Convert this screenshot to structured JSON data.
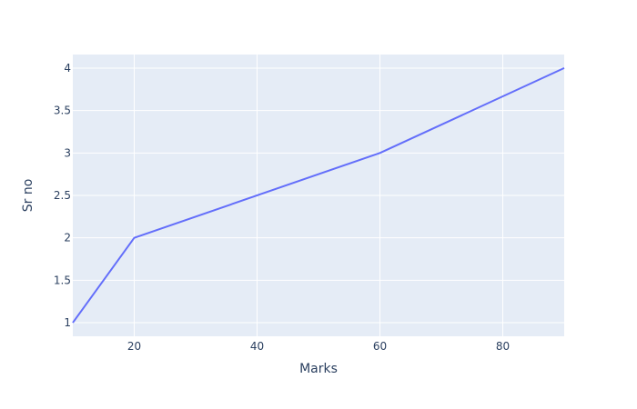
{
  "chart_data": {
    "type": "line",
    "title": "",
    "xlabel": "Marks",
    "ylabel": "Sr no",
    "xlim": [
      10,
      90
    ],
    "ylim": [
      0.84,
      4.16
    ],
    "x_ticks": [
      "20",
      "40",
      "60",
      "80"
    ],
    "y_ticks": [
      "1",
      "1.5",
      "2",
      "2.5",
      "3",
      "3.5",
      "4"
    ],
    "grid": true,
    "series": [
      {
        "x": [
          10,
          20,
          60,
          90
        ],
        "y": [
          1,
          2,
          3,
          4
        ],
        "color": "#636efa"
      }
    ],
    "plot_background": "#e5ecf6",
    "grid_color": "#ffffff",
    "text_color": "#2a3f5f"
  }
}
